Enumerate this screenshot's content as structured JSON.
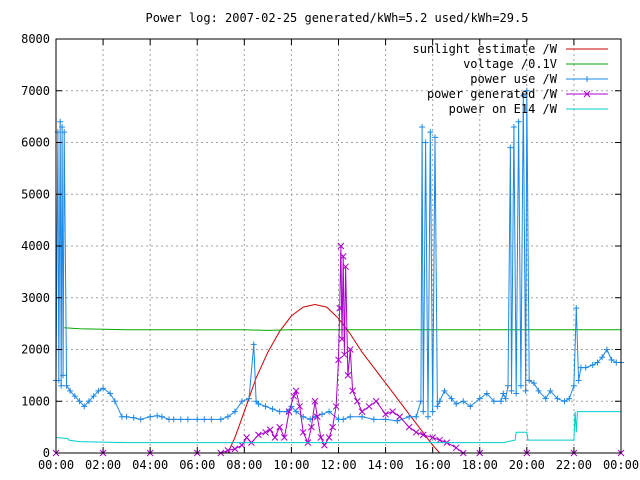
{
  "chart_data": {
    "type": "line",
    "title": "Power log: 2007-02-25 generated/kWh=5.2 used/kWh=29.5",
    "xlabel": "",
    "ylabel": "",
    "x_unit": "hours of day",
    "xlim": [
      0,
      24
    ],
    "ylim": [
      0,
      8000
    ],
    "grid": true,
    "legend_position": "top-right",
    "x_ticks": [
      {
        "value": 0,
        "label": "00:00"
      },
      {
        "value": 2,
        "label": "02:00"
      },
      {
        "value": 4,
        "label": "04:00"
      },
      {
        "value": 6,
        "label": "06:00"
      },
      {
        "value": 8,
        "label": "08:00"
      },
      {
        "value": 10,
        "label": "10:00"
      },
      {
        "value": 12,
        "label": "12:00"
      },
      {
        "value": 14,
        "label": "14:00"
      },
      {
        "value": 16,
        "label": "16:00"
      },
      {
        "value": 18,
        "label": "18:00"
      },
      {
        "value": 20,
        "label": "20:00"
      },
      {
        "value": 22,
        "label": "22:00"
      },
      {
        "value": 24,
        "label": "00:00"
      }
    ],
    "y_ticks": [
      {
        "value": 0,
        "label": "0"
      },
      {
        "value": 1000,
        "label": "1000"
      },
      {
        "value": 2000,
        "label": "2000"
      },
      {
        "value": 3000,
        "label": "3000"
      },
      {
        "value": 4000,
        "label": "4000"
      },
      {
        "value": 5000,
        "label": "5000"
      },
      {
        "value": 6000,
        "label": "6000"
      },
      {
        "value": 7000,
        "label": "7000"
      },
      {
        "value": 8000,
        "label": "8000"
      }
    ],
    "series": [
      {
        "name": "sunlight estimate /W",
        "color": "#cc0000",
        "marker": "none",
        "x": [
          7.3,
          7.6,
          8.0,
          8.5,
          9.0,
          9.5,
          10.0,
          10.5,
          11.0,
          11.5,
          12.0,
          12.5,
          13.0,
          13.5,
          14.0,
          14.5,
          15.0,
          15.5,
          16.0,
          16.3
        ],
        "y": [
          0,
          300,
          800,
          1450,
          1950,
          2350,
          2650,
          2820,
          2870,
          2820,
          2600,
          2300,
          1950,
          1650,
          1350,
          1050,
          750,
          450,
          150,
          0
        ]
      },
      {
        "name": "voltage /0.1V",
        "color": "#00aa00",
        "marker": "none",
        "x": [
          0.35,
          1,
          2,
          3,
          4,
          5,
          6,
          7,
          8,
          9,
          10,
          11,
          12,
          13,
          14,
          15,
          16,
          17,
          18,
          19,
          20,
          21,
          22,
          23,
          24
        ],
        "y": [
          2420,
          2400,
          2390,
          2380,
          2380,
          2380,
          2380,
          2380,
          2380,
          2370,
          2380,
          2380,
          2380,
          2380,
          2380,
          2380,
          2380,
          2380,
          2380,
          2380,
          2380,
          2380,
          2380,
          2380,
          2380
        ]
      },
      {
        "name": "power use /W",
        "color": "#1e88e5",
        "marker": "+",
        "x": [
          0.0,
          0.08,
          0.12,
          0.18,
          0.22,
          0.26,
          0.3,
          0.35,
          0.45,
          0.6,
          0.8,
          1.0,
          1.2,
          1.4,
          1.6,
          1.8,
          2.0,
          2.3,
          2.5,
          2.8,
          3.0,
          3.3,
          3.6,
          4.0,
          4.3,
          4.5,
          4.8,
          5.0,
          5.3,
          5.6,
          6.0,
          6.3,
          6.6,
          7.0,
          7.3,
          7.6,
          7.9,
          8.2,
          8.4,
          8.5,
          8.6,
          8.9,
          9.2,
          9.5,
          9.8,
          10.0,
          10.2,
          10.5,
          10.8,
          11.0,
          11.3,
          11.6,
          12.0,
          12.2,
          12.5,
          13.0,
          13.5,
          14.0,
          14.5,
          15.0,
          15.3,
          15.5,
          15.55,
          15.6,
          15.7,
          15.8,
          15.9,
          16.0,
          16.1,
          16.2,
          16.3,
          16.5,
          16.8,
          17.0,
          17.3,
          17.6,
          18.0,
          18.3,
          18.6,
          18.9,
          19.0,
          19.1,
          19.2,
          19.3,
          19.35,
          19.45,
          19.55,
          19.65,
          19.75,
          19.85,
          19.95,
          20.0,
          20.1,
          20.3,
          20.5,
          20.8,
          21.0,
          21.3,
          21.6,
          21.8,
          22.0,
          22.1,
          22.2,
          22.3,
          22.5,
          22.8,
          23.0,
          23.2,
          23.4,
          23.6,
          23.8,
          24.0
        ],
        "y": [
          1400,
          6200,
          1400,
          6400,
          1300,
          6300,
          1500,
          6200,
          1300,
          1200,
          1100,
          1000,
          900,
          1000,
          1100,
          1200,
          1250,
          1150,
          1000,
          700,
          700,
          680,
          650,
          700,
          720,
          700,
          650,
          650,
          650,
          650,
          650,
          650,
          650,
          650,
          700,
          800,
          1000,
          1050,
          2100,
          1000,
          950,
          900,
          850,
          800,
          800,
          900,
          800,
          700,
          650,
          700,
          750,
          800,
          650,
          650,
          700,
          700,
          650,
          650,
          620,
          700,
          700,
          1000,
          6300,
          800,
          6000,
          700,
          6200,
          800,
          6100,
          900,
          1000,
          1200,
          1050,
          950,
          1000,
          900,
          1050,
          1150,
          1000,
          1000,
          1150,
          1050,
          1300,
          5900,
          1200,
          6300,
          1150,
          6400,
          1300,
          6900,
          1200,
          7000,
          1400,
          1350,
          1200,
          1050,
          1200,
          1050,
          1000,
          1050,
          1300,
          2800,
          1400,
          1650,
          1650,
          1700,
          1750,
          1850,
          2000,
          1800,
          1750,
          1750
        ]
      },
      {
        "name": "power generated /W",
        "color": "#aa00cc",
        "marker": "x",
        "x": [
          0.0,
          2.0,
          4.0,
          6.0,
          7.0,
          7.3,
          7.6,
          7.9,
          8.1,
          8.3,
          8.6,
          8.9,
          9.1,
          9.3,
          9.5,
          9.7,
          9.9,
          10.1,
          10.2,
          10.35,
          10.5,
          10.7,
          10.85,
          11.0,
          11.1,
          11.25,
          11.4,
          11.6,
          11.75,
          11.9,
          12.0,
          12.05,
          12.1,
          12.15,
          12.2,
          12.25,
          12.3,
          12.4,
          12.5,
          12.6,
          12.8,
          13.0,
          13.3,
          13.6,
          14.0,
          14.3,
          14.6,
          15.0,
          15.3,
          15.6,
          16.0,
          16.3,
          16.6,
          17.0,
          17.3,
          18.0,
          20.0,
          22.0,
          24.0
        ],
        "y": [
          0,
          0,
          0,
          0,
          0,
          50,
          80,
          150,
          300,
          200,
          350,
          400,
          450,
          300,
          500,
          300,
          800,
          1100,
          1200,
          900,
          400,
          200,
          500,
          1000,
          700,
          300,
          150,
          300,
          500,
          900,
          1800,
          2800,
          4000,
          2200,
          3800,
          1900,
          3600,
          1500,
          2000,
          1200,
          1000,
          800,
          900,
          1000,
          750,
          800,
          700,
          500,
          400,
          350,
          300,
          250,
          200,
          100,
          0,
          0,
          0,
          0,
          0
        ]
      },
      {
        "name": "power on E14 /W",
        "color": "#00cccc",
        "marker": "none",
        "x": [
          0.0,
          0.5,
          0.55,
          1.0,
          3.0,
          6.0,
          8.0,
          8.05,
          9.0,
          12.0,
          15.0,
          16.0,
          19.0,
          19.5,
          19.55,
          20.0,
          20.05,
          22.0,
          22.05,
          22.1,
          22.15,
          22.2,
          24.0
        ],
        "y": [
          300,
          280,
          250,
          220,
          200,
          200,
          200,
          200,
          200,
          200,
          200,
          200,
          200,
          250,
          400,
          400,
          250,
          250,
          800,
          400,
          800,
          800,
          800
        ]
      }
    ]
  }
}
